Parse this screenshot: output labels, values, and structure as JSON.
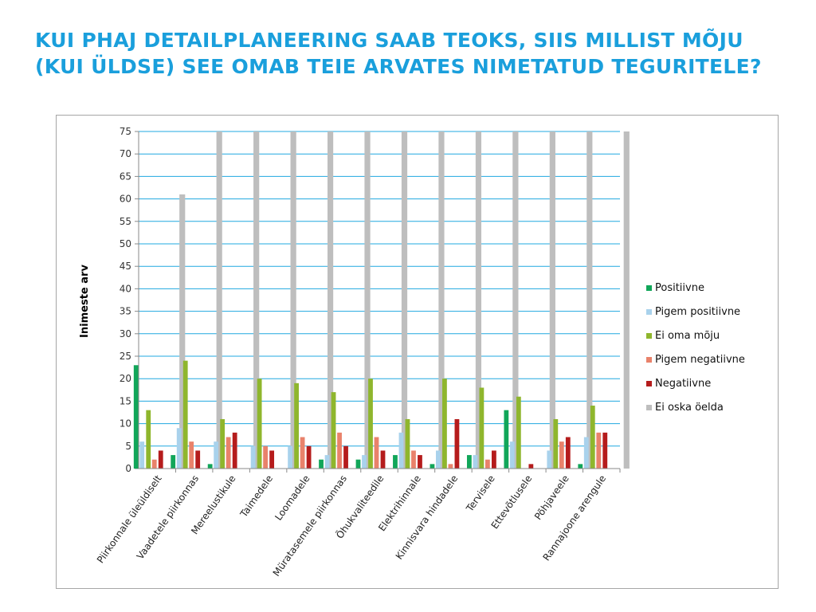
{
  "slide": {
    "title": "KUI PHAJ DETAILPLANEERING SAAB TEOKS, SIIS MILLIST MÕJU (KUI ÜLDSE) SEE OMAB TEIE ARVATES NIMETATUD TEGURITELE?"
  },
  "chart_data": {
    "type": "bar",
    "title": "",
    "xlabel": "",
    "ylabel": "Inimeste arv",
    "ylim": [
      0,
      75
    ],
    "ytick_step": 5,
    "grid": true,
    "legend_position": "right",
    "categories": [
      "Piirkonnale üleüldiselt",
      "Vaadetele piirkonnas",
      "Mereelustikule",
      "Taimedele",
      "Loomadele",
      "Müratasemele piirkonnas",
      "Õhukvaliteedile",
      "Elektrihinnale",
      "Kinnisvara hindadele",
      "Tervisele",
      "Ettevõtlusele",
      "Põhjaveele",
      "Rannajoone arengule"
    ],
    "series": [
      {
        "name": "Positiivne",
        "color": "#11a659",
        "values": [
          23,
          3,
          1,
          0,
          0,
          2,
          2,
          3,
          1,
          3,
          13,
          0,
          1
        ]
      },
      {
        "name": "Pigem positiivne",
        "color": "#a9d2ec",
        "values": [
          6,
          9,
          6,
          5,
          5,
          3,
          3,
          8,
          4,
          3,
          6,
          4,
          7
        ]
      },
      {
        "name": "Ei oma mõju",
        "color": "#8fb62d",
        "values": [
          13,
          24,
          11,
          20,
          19,
          17,
          20,
          11,
          20,
          18,
          16,
          11,
          14
        ]
      },
      {
        "name": "Pigem negatiivne",
        "color": "#e9826b",
        "values": [
          2,
          6,
          7,
          5,
          7,
          8,
          7,
          4,
          1,
          2,
          0,
          6,
          8
        ]
      },
      {
        "name": "Negatiivne",
        "color": "#b51c1c",
        "values": [
          4,
          4,
          8,
          4,
          5,
          5,
          4,
          3,
          11,
          4,
          1,
          7,
          8
        ]
      },
      {
        "name": "Ei oska öelda",
        "color": "#bebebe",
        "values": [
          61,
          75,
          75,
          75,
          75,
          75,
          75,
          75,
          75,
          75,
          75,
          75,
          75
        ]
      }
    ]
  }
}
